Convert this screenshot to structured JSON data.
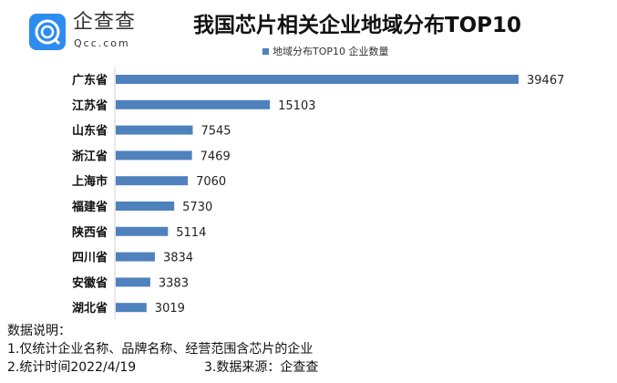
{
  "logo": {
    "cn": "企查查",
    "en": "Qcc.com"
  },
  "chart_data": {
    "type": "bar",
    "orientation": "horizontal",
    "title": "我国芯片相关企业地域分布TOP10",
    "legend": {
      "position": "top",
      "entries": [
        "地域分布TOP10 企业数量"
      ]
    },
    "categories": [
      "广东省",
      "江苏省",
      "山东省",
      "浙江省",
      "上海市",
      "福建省",
      "陕西省",
      "四川省",
      "安徽省",
      "湖北省"
    ],
    "series": [
      {
        "name": "地域分布TOP10 企业数量",
        "values": [
          39467,
          15103,
          7545,
          7469,
          7060,
          5730,
          5114,
          3834,
          3383,
          3019
        ],
        "color": "#4f81bd"
      }
    ],
    "xlim": [
      0,
      40000
    ],
    "grid": false,
    "data_labels": true
  },
  "notes": {
    "heading": "数据说明：",
    "line1": "1.仅统计企业名称、品牌名称、经营范围含芯片的企业",
    "line2": "2.统计时间2022/4/19",
    "line3": "3.数据来源：企查查"
  }
}
